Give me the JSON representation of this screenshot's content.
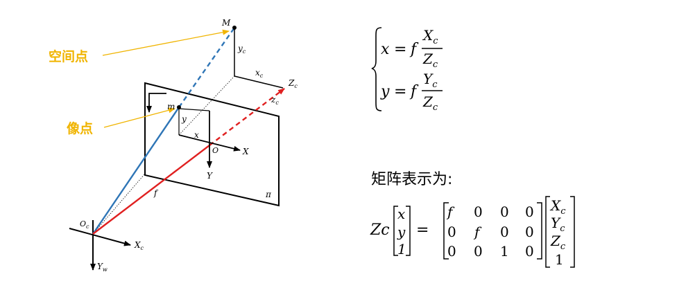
{
  "annotations": {
    "space_point": "空间点",
    "image_point": "像点",
    "annotation_color": "#F0B400"
  },
  "points": {
    "M": "M",
    "m": "m",
    "O": "O",
    "Oc": "O",
    "Oc_sub": "c"
  },
  "axes": {
    "X": "X",
    "Y": "Y",
    "x": "x",
    "y": "y",
    "f": "f",
    "pi": "π",
    "Xc": "X",
    "Xc_sub": "c",
    "Yw": "Y",
    "Yw_sub": "w",
    "Zc": "Z",
    "Zc_sub": "c",
    "yc": "y",
    "yc_sub": "c",
    "xc": "x",
    "xc_sub": "c",
    "zc": "z",
    "zc_sub": "c"
  },
  "colors": {
    "ray_blue": "#2E75B6",
    "ray_red": "#E02020",
    "ink": "#000000"
  },
  "equations": {
    "x_lhs": "x",
    "y_lhs": "y",
    "eq": "=",
    "f": "f",
    "X": "X",
    "Y": "Y",
    "Z": "Z",
    "sub": "c"
  },
  "matrix_label": "矩阵表示为:",
  "matrix": {
    "lhs_scalar": "Zc",
    "vector": [
      "x",
      "y",
      "1"
    ],
    "eq": "=",
    "rows": [
      [
        "f",
        "0",
        "0",
        "0"
      ],
      [
        "0",
        "f",
        "0",
        "0"
      ],
      [
        "0",
        "0",
        "1",
        "0"
      ]
    ],
    "world_vector": [
      {
        "v": "X",
        "s": "c"
      },
      {
        "v": "Y",
        "s": "c"
      },
      {
        "v": "Z",
        "s": "c"
      },
      {
        "v": "1",
        "s": ""
      }
    ]
  }
}
